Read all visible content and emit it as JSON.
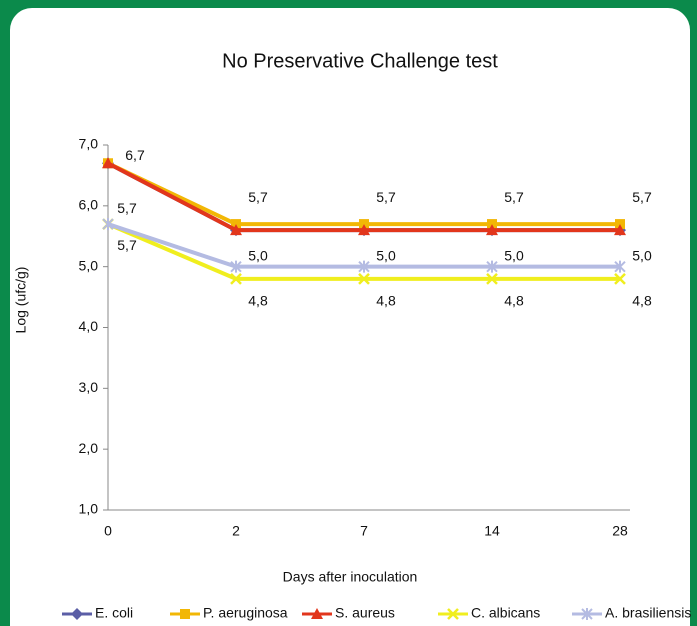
{
  "chart_data": {
    "type": "line",
    "title": "No Preservative  Challenge test",
    "x_label": "Days after inoculation",
    "y_label": "Log (ufc/g)",
    "categories": [
      "0",
      "2",
      "7",
      "14",
      "28"
    ],
    "ylim": [
      1,
      7
    ],
    "yticks": [
      {
        "value": 1,
        "label": "1,0"
      },
      {
        "value": 2,
        "label": "2,0"
      },
      {
        "value": 3,
        "label": "3,0"
      },
      {
        "value": 4,
        "label": "4,0"
      },
      {
        "value": 5,
        "label": "5,0"
      },
      {
        "value": 6,
        "label": "6,0"
      },
      {
        "value": 7,
        "label": "7,0"
      }
    ],
    "legend": "bottom",
    "series": [
      {
        "name": "E. coli",
        "color": "#5b5ea6",
        "marker": "diamond",
        "values": [
          6.7,
          5.6,
          5.6,
          5.6,
          5.6
        ]
      },
      {
        "name": "P. aeruginosa",
        "color": "#f2b705",
        "marker": "square",
        "values": [
          6.7,
          5.7,
          5.7,
          5.7,
          5.7
        ],
        "value_labels": [
          "6,7",
          "5,7",
          "5,7",
          "5,7",
          "5,7"
        ]
      },
      {
        "name": "S. aureus",
        "color": "#e2361c",
        "marker": "triangle",
        "values": [
          6.7,
          5.6,
          5.6,
          5.6,
          5.6
        ]
      },
      {
        "name": "C. albicans",
        "color": "#f0ee1e",
        "marker": "x",
        "values": [
          5.7,
          4.8,
          4.8,
          4.8,
          4.8
        ],
        "value_labels": [
          "5,7",
          "4,8",
          "4,8",
          "4,8",
          "4,8"
        ]
      },
      {
        "name": "A. brasiliensis",
        "color": "#b4bbe2",
        "marker": "star",
        "values": [
          5.7,
          5.0,
          5.0,
          5.0,
          5.0
        ],
        "value_labels": [
          "5,7",
          "5,0",
          "5,0",
          "5,0",
          "5,0"
        ]
      }
    ]
  }
}
